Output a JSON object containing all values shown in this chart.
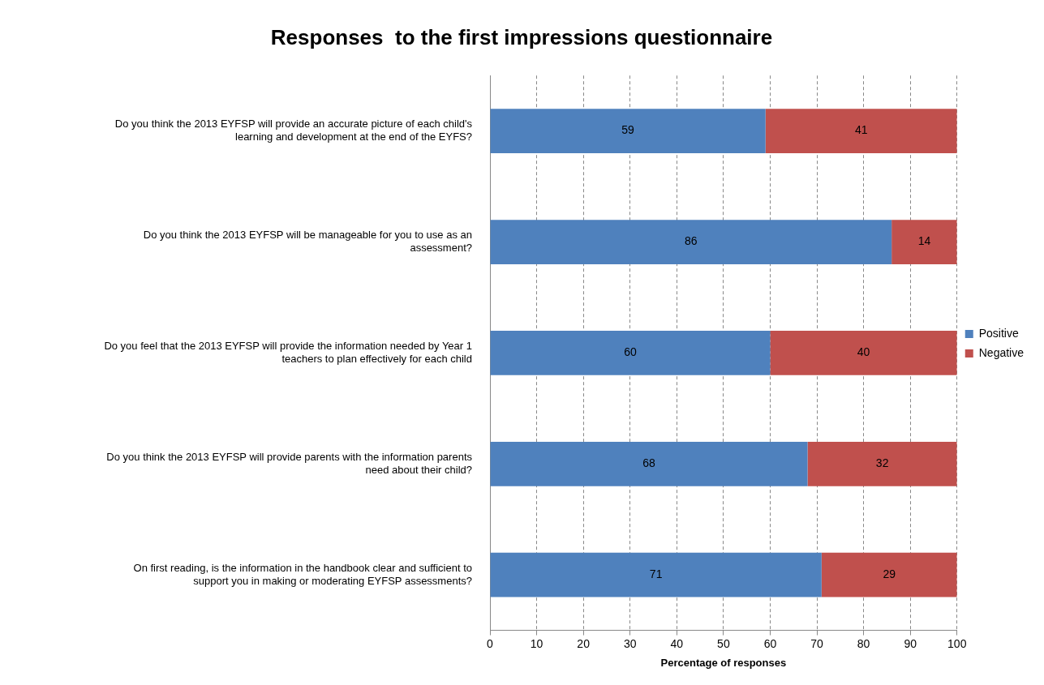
{
  "chart_data": {
    "type": "bar",
    "orientation": "horizontal",
    "stacked": true,
    "title": "Responses  to the first impressions questionnaire",
    "xlabel": "Percentage of responses",
    "categories": [
      "Do you think the 2013 EYFSP will provide an accurate picture of each child's learning and development at the end of the EYFS?",
      "Do you think the 2013 EYFSP will be manageable for you to use as an assessment?",
      "Do you feel that the 2013 EYFSP will provide the information needed by Year 1 teachers to plan effectively for each child",
      "Do you think the 2013 EYFSP will provide parents with the information parents need about their child?",
      "On first reading, is the information in the handbook clear and sufficient to support you in making or moderating EYFSP assessments?"
    ],
    "series": [
      {
        "name": "Positive",
        "color": "#4f81bd",
        "values": [
          59,
          86,
          60,
          68,
          71
        ]
      },
      {
        "name": "Negative",
        "color": "#c0504d",
        "values": [
          41,
          14,
          40,
          32,
          29
        ]
      }
    ],
    "xlim": [
      0,
      100
    ],
    "xticks": [
      0,
      10,
      20,
      30,
      40,
      50,
      60,
      70,
      80,
      90,
      100
    ],
    "grid": "x",
    "legend": "right",
    "data_labels": true
  }
}
